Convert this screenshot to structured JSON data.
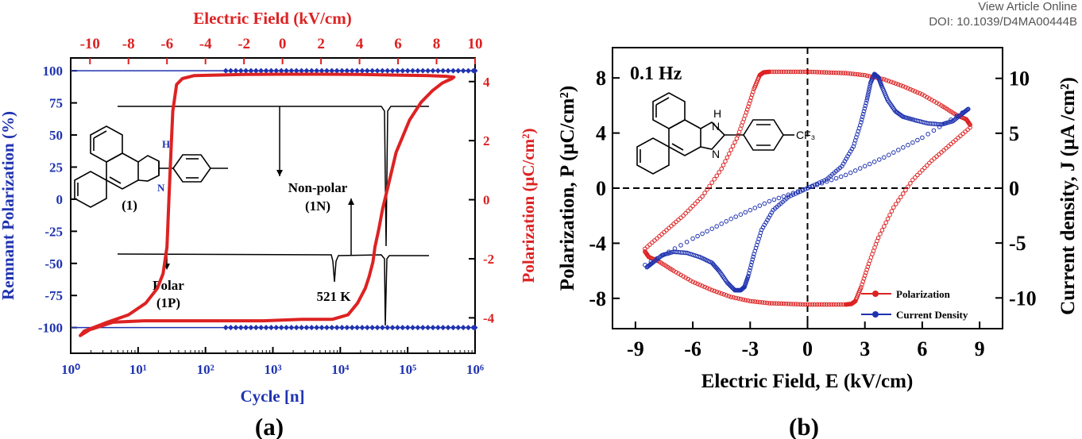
{
  "header": {
    "view_article": "View Article Online",
    "doi": "DOI: 10.1039/D4MA00444B"
  },
  "colors": {
    "red": "#dd2222",
    "blue": "#1f33b0",
    "black": "#000000",
    "marker_red": "#c62828"
  },
  "chart_data": [
    {
      "type": "line",
      "panel_label": "(a)",
      "bottom_axis": {
        "label": "Cycle [n]",
        "scale": "log",
        "range": [
          1,
          1000000
        ],
        "tick_labels": [
          "10⁰",
          "10¹",
          "10²",
          "10³",
          "10⁴",
          "10⁵",
          "10⁶"
        ]
      },
      "top_axis": {
        "label": "Electric Field (kV/cm)",
        "range": [
          -11,
          10
        ],
        "ticks": [
          -10,
          -8,
          -6,
          -4,
          -2,
          0,
          2,
          4,
          6,
          8,
          10
        ]
      },
      "left_axis": {
        "label": "Remnant Polarization (%)",
        "range": [
          -120,
          110
        ],
        "ticks": [
          -100,
          -75,
          -50,
          -25,
          0,
          25,
          50,
          75,
          100
        ]
      },
      "right_axis": {
        "label": "Polarization (μC/cm²)",
        "range": [
          -5.2,
          4.8
        ],
        "ticks": [
          -4,
          -2,
          0,
          2,
          4
        ]
      },
      "remnant_polarization": {
        "cycles": [
          200,
          237,
          282,
          335,
          398,
          473,
          562,
          668,
          794,
          944,
          1122,
          1334,
          1585,
          1884,
          2239,
          2661,
          3162,
          3758,
          4467,
          5309,
          6310,
          7499,
          8913,
          10593,
          12589,
          14962,
          17783,
          21135,
          25119,
          29854,
          35481,
          42170,
          50119,
          59566,
          70795,
          84140,
          100000,
          118850,
          141254,
          167880,
          199526,
          237137,
          281838,
          334965,
          398107,
          473151,
          562341,
          668344,
          794328,
          944061,
          1000000
        ],
        "upper_percent": 100,
        "lower_percent": -100
      },
      "hysteresis_loop": {
        "E_kV_cm": [
          4.8,
          5.0,
          5.2,
          5.5,
          5.9,
          6.6,
          7.2,
          7.8,
          8.3,
          8.8,
          8.9,
          8.5,
          7.6,
          6.0,
          4.0,
          2.0,
          0.0,
          -2.0,
          -3.5,
          -4.6,
          -5.2,
          -5.5,
          -5.7,
          -5.8,
          -5.9,
          -6.0,
          -6.2,
          -6.5,
          -7.1,
          -8.0,
          -9.1,
          -10.3,
          -10.5,
          -10.0,
          -8.8,
          -7.2,
          -5.0,
          -3.0,
          -1.0,
          1.0,
          2.6,
          3.4,
          3.9,
          4.3,
          4.5,
          4.7,
          4.8
        ],
        "P_uC_cm2": [
          -1.6,
          -1.0,
          -0.3,
          0.5,
          1.6,
          2.7,
          3.3,
          3.7,
          3.95,
          4.1,
          4.15,
          4.18,
          4.2,
          4.22,
          4.24,
          4.25,
          4.25,
          4.24,
          4.22,
          4.2,
          4.1,
          3.9,
          3.0,
          1.5,
          0.0,
          -1.6,
          -2.5,
          -3.0,
          -3.5,
          -3.9,
          -4.15,
          -4.45,
          -4.6,
          -4.4,
          -4.15,
          -4.1,
          -4.1,
          -4.1,
          -4.1,
          -4.05,
          -4.05,
          -3.9,
          -3.5,
          -3.0,
          -2.6,
          -2.1,
          -1.6
        ]
      },
      "inset_labels": {
        "compound": "(1)",
        "atom_h": "H",
        "atom_n": "N",
        "nonpolar_line1": "Non-polar",
        "nonpolar_line2": "(1N)",
        "polar_line1": "Polar",
        "polar_line2": "(1P)",
        "temperature": "521 K"
      }
    },
    {
      "type": "scatter",
      "panel_label": "(b)",
      "frequency_label": "0.1 Hz",
      "x_axis": {
        "label": "Electric Field, E (kV/cm)",
        "range": [
          -10.2,
          10.2
        ],
        "ticks": [
          -9,
          -6,
          -3,
          0,
          3,
          6,
          9
        ]
      },
      "left_axis": {
        "label": "Polarization, P (μC/cm²)",
        "range": [
          -10.2,
          10.2
        ],
        "ticks": [
          -8,
          -4,
          0,
          4,
          8
        ]
      },
      "right_axis": {
        "label": "Current density, J (μA /cm²)",
        "range": [
          -12.8,
          12.8
        ],
        "ticks": [
          -10,
          -5,
          0,
          5,
          10
        ]
      },
      "series": [
        {
          "name": "Polarization",
          "color": "#dd2222",
          "upper": {
            "x": [
              -8.5,
              -7.5,
              -6.5,
              -5.5,
              -4.5,
              -3.7,
              -3.2,
              -2.8,
              -2.5,
              -2.3,
              -2.0,
              -1.0,
              0.0,
              1.0,
              2.0,
              3.0,
              4.0,
              5.0,
              6.0,
              7.0,
              7.8,
              8.3,
              8.5
            ],
            "y": [
              -4.4,
              -3.2,
              -2.0,
              -0.6,
              1.4,
              3.6,
              5.5,
              7.2,
              8.2,
              8.4,
              8.45,
              8.45,
              8.45,
              8.4,
              8.35,
              8.2,
              7.9,
              7.4,
              6.8,
              6.0,
              5.3,
              5.0,
              4.6
            ]
          },
          "lower": {
            "x": [
              8.5,
              7.5,
              6.5,
              5.5,
              4.5,
              3.7,
              3.2,
              2.8,
              2.5,
              2.3,
              2.0,
              1.0,
              0.0,
              -1.0,
              -2.0,
              -3.0,
              -4.0,
              -5.0,
              -6.0,
              -7.0,
              -7.8,
              -8.3,
              -8.5
            ],
            "y": [
              4.4,
              3.2,
              2.0,
              0.6,
              -1.4,
              -3.6,
              -5.5,
              -7.2,
              -8.2,
              -8.4,
              -8.45,
              -8.45,
              -8.45,
              -8.4,
              -8.35,
              -8.2,
              -7.9,
              -7.4,
              -6.8,
              -6.0,
              -5.3,
              -5.0,
              -4.6
            ]
          }
        },
        {
          "name": "Current Density",
          "color": "#1f33b0",
          "forward": {
            "x": [
              -8.5,
              -6.0,
              -4.0,
              -2.0,
              0.0,
              1.0,
              1.8,
              2.4,
              2.8,
              3.1,
              3.3,
              3.5,
              3.7,
              3.9,
              4.2,
              4.6,
              5.0,
              5.6,
              6.3,
              7.0,
              7.6,
              8.1,
              8.4
            ],
            "y": [
              -7.0,
              -4.6,
              -2.8,
              -1.2,
              0.0,
              0.8,
              2.0,
              3.8,
              6.0,
              8.0,
              9.6,
              10.4,
              10.1,
              9.2,
              8.0,
              7.0,
              6.5,
              6.2,
              5.9,
              5.8,
              6.1,
              6.8,
              7.2
            ]
          },
          "return": {
            "x": [
              8.4,
              6.0,
              4.0,
              2.0,
              0.0,
              -1.0,
              -1.8,
              -2.4,
              -2.8,
              -3.1,
              -3.3,
              -3.5,
              -3.8,
              -4.2,
              -4.6,
              -5.0,
              -5.6,
              -6.3,
              -7.0,
              -7.6,
              -8.1,
              -8.4
            ],
            "y": [
              7.2,
              4.6,
              2.8,
              1.2,
              0.0,
              -0.8,
              -2.0,
              -3.8,
              -6.0,
              -8.0,
              -9.0,
              -9.3,
              -9.3,
              -8.6,
              -7.6,
              -6.8,
              -6.3,
              -5.9,
              -5.8,
              -6.1,
              -6.8,
              -7.2
            ]
          }
        }
      ],
      "inset_labels": {
        "atom_h": "H",
        "atom_n1": "N",
        "atom_n2": "N",
        "substituent": "CF₃"
      }
    }
  ]
}
